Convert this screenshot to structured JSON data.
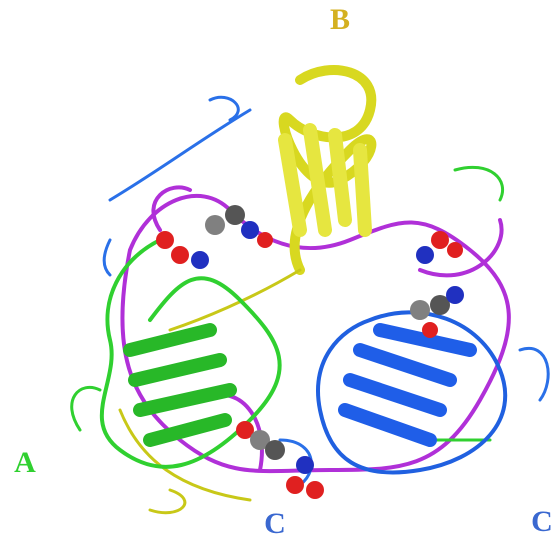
{
  "labels": [
    "B",
    "A",
    "C",
    "C"
  ]
}
